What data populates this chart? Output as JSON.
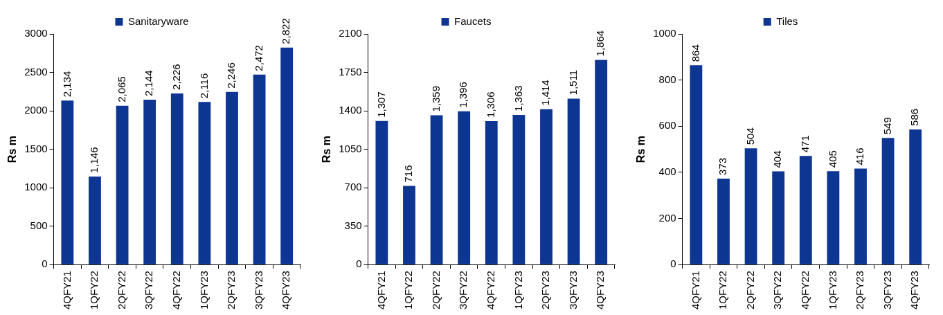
{
  "chart_data": [
    {
      "type": "bar",
      "categories": [
        "4QFY21",
        "1QFY22",
        "2QFY22",
        "3QFY22",
        "4QFY22",
        "1QFY23",
        "2QFY23",
        "3QFY23",
        "4QFY23"
      ],
      "ylabel": "Rs m",
      "ylim": [
        0,
        3000
      ],
      "yticks": [
        0,
        500,
        1000,
        1500,
        2000,
        2500,
        3000
      ],
      "grid": false,
      "legend": "top",
      "series": [
        {
          "name": "Sanitaryware",
          "color": "#0d3592",
          "values": [
            2134,
            1146,
            2065,
            2144,
            2226,
            2116,
            2246,
            2472,
            2822
          ],
          "value_labels": [
            "2,134",
            "1,146",
            "2,065",
            "2,144",
            "2,226",
            "2,116",
            "2,246",
            "2,472",
            "2,822"
          ]
        }
      ]
    },
    {
      "type": "bar",
      "categories": [
        "4QFY21",
        "1QFY22",
        "2QFY22",
        "3QFY22",
        "4QFY22",
        "1QFY23",
        "2QFY23",
        "3QFY23",
        "4QFY23"
      ],
      "ylabel": "Rs m",
      "ylim": [
        0,
        2100
      ],
      "yticks": [
        0,
        350,
        700,
        1050,
        1400,
        1750,
        2100
      ],
      "grid": false,
      "legend": "top",
      "series": [
        {
          "name": "Faucets",
          "color": "#0d3592",
          "values": [
            1307,
            716,
            1359,
            1396,
            1306,
            1363,
            1414,
            1511,
            1864
          ],
          "value_labels": [
            "1,307",
            "716",
            "1,359",
            "1,396",
            "1,306",
            "1,363",
            "1,414",
            "1,511",
            "1,864"
          ]
        }
      ]
    },
    {
      "type": "bar",
      "categories": [
        "4QFY21",
        "1QFY22",
        "2QFY22",
        "3QFY22",
        "4QFY22",
        "1QFY23",
        "2QFY23",
        "3QFY23",
        "4QFY23"
      ],
      "ylabel": "Rs m",
      "ylim": [
        0,
        1000
      ],
      "yticks": [
        0,
        200,
        400,
        600,
        800,
        1000
      ],
      "grid": false,
      "legend": "top",
      "series": [
        {
          "name": "Tiles",
          "color": "#0d3592",
          "values": [
            864,
            373,
            504,
            404,
            471,
            405,
            416,
            549,
            586
          ],
          "value_labels": [
            "864",
            "373",
            "504",
            "404",
            "471",
            "405",
            "416",
            "549",
            "586"
          ]
        }
      ]
    }
  ]
}
